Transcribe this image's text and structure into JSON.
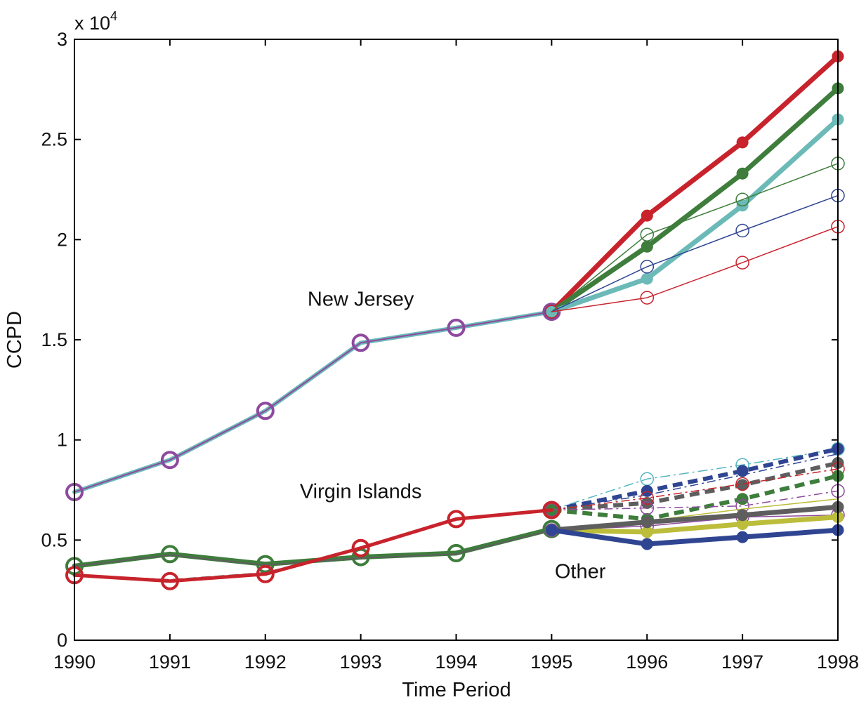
{
  "chart_data": {
    "type": "line",
    "xlabel": "Time Period",
    "ylabel": "CCPD",
    "exponent_label": {
      "base": "x 10",
      "power": "4"
    },
    "xlim": [
      1990,
      1998
    ],
    "ylim": [
      0,
      30000
    ],
    "x_ticks": [
      1990,
      1991,
      1992,
      1993,
      1994,
      1995,
      1996,
      1997,
      1998
    ],
    "y_ticks": [
      {
        "value": 0,
        "label": "0"
      },
      {
        "value": 5000,
        "label": "0.5"
      },
      {
        "value": 10000,
        "label": "1"
      },
      {
        "value": 15000,
        "label": "1.5"
      },
      {
        "value": 20000,
        "label": "2"
      },
      {
        "value": 25000,
        "label": "2.5"
      },
      {
        "value": 30000,
        "label": "3"
      }
    ],
    "grid": false,
    "annotations": [
      {
        "text": "New Jersey",
        "x": 1993.0,
        "y": 16700
      },
      {
        "text": "Virgin Islands",
        "x": 1993.0,
        "y": 7100
      },
      {
        "text": "Other",
        "x": 1995.3,
        "y": 3100
      }
    ],
    "colors": {
      "purple": "#8e4a9e",
      "teal": "#6bbab8",
      "red": "#c8232c",
      "green": "#3e7d3c",
      "blue": "#2f4592",
      "gray": "#5e5e5e",
      "olive": "#bcbd3a",
      "cyan": "#55b6c0"
    },
    "series": [
      {
        "x": [
          1990,
          1991,
          1992,
          1993,
          1994,
          1995
        ],
        "y": [
          7400,
          9000,
          11450,
          14850,
          15600,
          16400
        ],
        "color": "#6bbab8",
        "width": 6,
        "dash": "",
        "marker": "open",
        "marker_size": 11,
        "marker_color": "#8e4a9e"
      },
      {
        "x": [
          1990,
          1991,
          1992,
          1993,
          1994,
          1995
        ],
        "y": [
          7400,
          9000,
          11450,
          14850,
          15600,
          16400
        ],
        "color": "#8e4a9e",
        "width": 2,
        "dash": "",
        "marker": "none"
      },
      {
        "x": [
          1995,
          1996,
          1997,
          1998
        ],
        "y": [
          16400,
          21200,
          24850,
          29150
        ],
        "color": "#c8232c",
        "width": 7,
        "dash": "",
        "marker": "filled",
        "marker_size": 8
      },
      {
        "x": [
          1995,
          1996,
          1997,
          1998
        ],
        "y": [
          16400,
          19650,
          23300,
          27550
        ],
        "color": "#3e7d3c",
        "width": 7,
        "dash": "",
        "marker": "filled",
        "marker_size": 8
      },
      {
        "x": [
          1995,
          1996,
          1997,
          1998
        ],
        "y": [
          16400,
          18050,
          21700,
          26000
        ],
        "color": "#6bbab8",
        "width": 7,
        "dash": "",
        "marker": "filled",
        "marker_size": 8
      },
      {
        "x": [
          1995,
          1996,
          1997,
          1998
        ],
        "y": [
          16400,
          20250,
          22000,
          23800
        ],
        "color": "#3e7d3c",
        "width": 1.5,
        "dash": "",
        "marker": "open",
        "marker_size": 9
      },
      {
        "x": [
          1995,
          1996,
          1997,
          1998
        ],
        "y": [
          16400,
          18650,
          20450,
          22200
        ],
        "color": "#2f4592",
        "width": 1.5,
        "dash": "",
        "marker": "open",
        "marker_size": 9
      },
      {
        "x": [
          1995,
          1996,
          1997,
          1998
        ],
        "y": [
          16400,
          17100,
          18850,
          20650
        ],
        "color": "#c8232c",
        "width": 1.5,
        "dash": "",
        "marker": "open",
        "marker_size": 9
      },
      {
        "x": [
          1990,
          1991,
          1992,
          1993,
          1994,
          1995
        ],
        "y": [
          3700,
          4300,
          3800,
          4150,
          4350,
          5550
        ],
        "color": "#3e7d3c",
        "width": 7,
        "dash": "",
        "marker": "open",
        "marker_size": 11
      },
      {
        "x": [
          1990,
          1991,
          1992,
          1993,
          1994,
          1995
        ],
        "y": [
          3700,
          4250,
          3750,
          4100,
          4300,
          5500
        ],
        "color": "#5e5e5e",
        "width": 2,
        "dash": "",
        "marker": "none"
      },
      {
        "x": [
          1995,
          1996,
          1997,
          1998
        ],
        "y": [
          6500,
          8050,
          8750,
          9550
        ],
        "color": "#55b6c0",
        "width": 1.5,
        "dash": "14 5 3 5",
        "marker": "open",
        "marker_size": 9
      },
      {
        "x": [
          1995,
          1996,
          1997,
          1998
        ],
        "y": [
          6500,
          7450,
          8450,
          9550
        ],
        "color": "#2f4592",
        "width": 6,
        "dash": "14 8",
        "marker": "filled",
        "marker_size": 8
      },
      {
        "x": [
          1995,
          1996,
          1997,
          1998
        ],
        "y": [
          6500,
          7250,
          8250,
          9300
        ],
        "color": "#2f4592",
        "width": 1.5,
        "dash": "12 5 3 5",
        "marker": "none"
      },
      {
        "x": [
          1995,
          1996,
          1997,
          1998
        ],
        "y": [
          6500,
          6850,
          7750,
          8850
        ],
        "color": "#5e5e5e",
        "width": 6,
        "dash": "14 8",
        "marker": "filled",
        "marker_size": 8
      },
      {
        "x": [
          1995,
          1996,
          1997,
          1998
        ],
        "y": [
          6500,
          7100,
          7800,
          8550
        ],
        "color": "#c8232c",
        "width": 1.5,
        "dash": "12 5 3 5",
        "marker": "open",
        "marker_size": 9
      },
      {
        "x": [
          1995,
          1996,
          1997,
          1998
        ],
        "y": [
          6500,
          6050,
          7050,
          8200
        ],
        "color": "#3e7d3c",
        "width": 6,
        "dash": "14 8",
        "marker": "filled",
        "marker_size": 8
      },
      {
        "x": [
          1995,
          1996,
          1997,
          1998
        ],
        "y": [
          6500,
          6600,
          6700,
          7450
        ],
        "color": "#8e4a9e",
        "width": 1.5,
        "dash": "12 5 3 5",
        "marker": "open",
        "marker_size": 9
      },
      {
        "x": [
          1990,
          1991,
          1992,
          1993,
          1994,
          1995
        ],
        "y": [
          3250,
          3000,
          3350,
          4600,
          6050,
          6500
        ],
        "color": "#5e5e5e",
        "width": 3,
        "dash": "14 6",
        "marker": "none"
      },
      {
        "x": [
          1990,
          1991,
          1992,
          1993,
          1994,
          1995
        ],
        "y": [
          3250,
          2950,
          3300,
          4600,
          6050,
          6500
        ],
        "color": "#c8232c",
        "width": 5,
        "dash": "",
        "marker": "open",
        "marker_size": 11
      },
      {
        "x": [
          1995,
          1996,
          1997,
          1998
        ],
        "y": [
          5500,
          5950,
          6550,
          7050
        ],
        "color": "#bcbd3a",
        "width": 1.5,
        "dash": "",
        "marker": "none"
      },
      {
        "x": [
          1995,
          1996,
          1997,
          1998
        ],
        "y": [
          5500,
          5700,
          6150,
          6250
        ],
        "color": "#8e4a9e",
        "width": 1.5,
        "dash": "",
        "marker": "open",
        "marker_size": 9
      },
      {
        "x": [
          1995,
          1996,
          1997,
          1998
        ],
        "y": [
          5500,
          5400,
          5800,
          6150
        ],
        "color": "#bcbd3a",
        "width": 7,
        "dash": "",
        "marker": "filled",
        "marker_size": 8
      },
      {
        "x": [
          1995,
          1996,
          1997,
          1998
        ],
        "y": [
          5500,
          5900,
          6250,
          6650
        ],
        "color": "#5e5e5e",
        "width": 7,
        "dash": "",
        "marker": "filled",
        "marker_size": 8
      },
      {
        "x": [
          1995,
          1996,
          1997,
          1998
        ],
        "y": [
          5500,
          4800,
          5150,
          5500
        ],
        "color": "#2f4592",
        "width": 7,
        "dash": "",
        "marker": "filled",
        "marker_size": 8
      }
    ]
  }
}
